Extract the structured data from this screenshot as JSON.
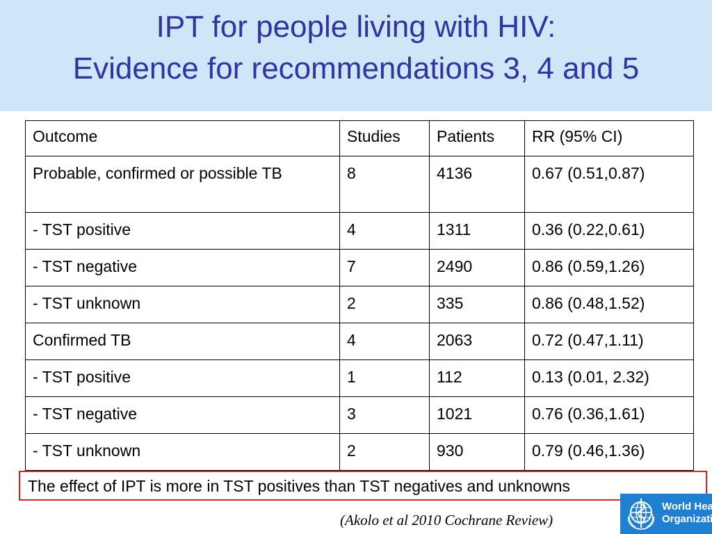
{
  "title": {
    "line1": "IPT for people living with HIV:",
    "line2": "Evidence for recommendations 3, 4 and 5"
  },
  "table": {
    "headers": [
      "Outcome",
      "Studies",
      "Patients",
      "RR (95% CI)"
    ],
    "rows": [
      {
        "outcome": "Probable, confirmed or possible TB",
        "studies": "8",
        "patients": "4136",
        "rr": "0.67 (0.51,0.87)"
      },
      {
        "outcome": "- TST positive",
        "studies": "4",
        "patients": "1311",
        "rr": "0.36 (0.22,0.61)"
      },
      {
        "outcome": "- TST negative",
        "studies": "7",
        "patients": "2490",
        "rr": "0.86 (0.59,1.26)"
      },
      {
        "outcome": "- TST unknown",
        "studies": "2",
        "patients": "335",
        "rr": "0.86 (0.48,1.52)"
      },
      {
        "outcome": "Confirmed TB",
        "studies": "4",
        "patients": "2063",
        "rr": "0.72 (0.47,1.11)"
      },
      {
        "outcome": "- TST positive",
        "studies": "1",
        "patients": "112",
        "rr": "0.13 (0.01, 2.32)"
      },
      {
        "outcome": "- TST negative",
        "studies": "3",
        "patients": "1021",
        "rr": "0.76 (0.36,1.61)"
      },
      {
        "outcome": "- TST unknown",
        "studies": "2",
        "patients": "930",
        "rr": "0.79 (0.46,1.36)"
      }
    ]
  },
  "conclusion": "The effect of IPT is more in TST positives  than TST negatives and unknowns",
  "citation": "(Akolo et al 2010 Cochrane Review)",
  "logo": {
    "line1": "World Health",
    "line2": "Organization",
    "icon": "who-emblem-icon"
  },
  "colors": {
    "title_text": "#2b36a0",
    "title_band": "#cfe6f8",
    "conclusion_border": "#e02020",
    "logo_background": "#1f7fd0"
  }
}
